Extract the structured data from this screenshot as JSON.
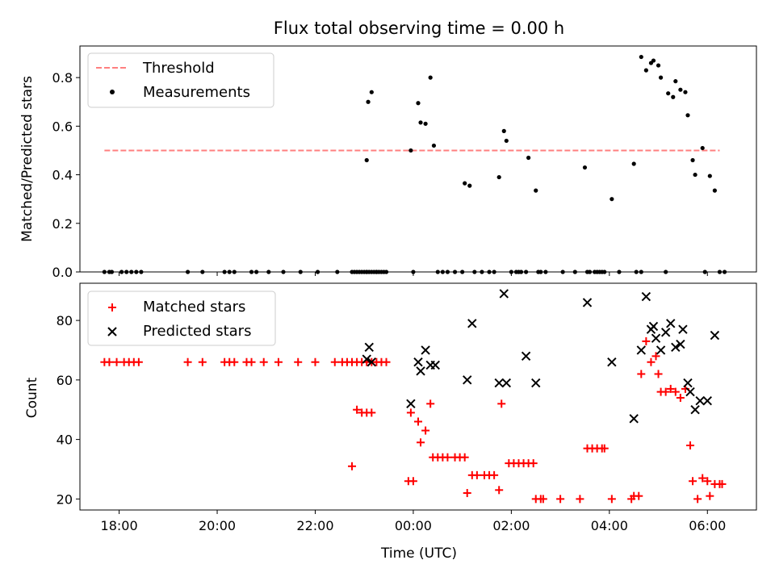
{
  "chart_data": [
    {
      "type": "scatter",
      "title": "Flux total observing time = 0.00 h",
      "xlabel": "",
      "ylabel": "Matched/Predicted stars",
      "xlim": [
        -6.8,
        7.0
      ],
      "ylim": [
        0.0,
        0.93
      ],
      "yticks": [
        0.0,
        0.2,
        0.4,
        0.6,
        0.8
      ],
      "ytick_labels": [
        "0.0",
        "0.2",
        "0.4",
        "0.6",
        "0.8"
      ],
      "xticks": [
        -6,
        -4,
        -2,
        0,
        2,
        4,
        6
      ],
      "grid": false,
      "legend": "top-left",
      "threshold": {
        "name": "Threshold",
        "y": 0.5,
        "x": [
          -6.3,
          6.25
        ],
        "color": "#ff7f7f",
        "style": "dashed"
      },
      "series": [
        {
          "name": "Measurements",
          "color": "#000000",
          "marker": "dot",
          "points": [
            [
              -6.3,
              0
            ],
            [
              -6.2,
              0
            ],
            [
              -6.15,
              0
            ],
            [
              -5.95,
              0
            ],
            [
              -5.85,
              0
            ],
            [
              -5.75,
              0
            ],
            [
              -5.65,
              0
            ],
            [
              -5.55,
              0
            ],
            [
              -4.6,
              0
            ],
            [
              -4.3,
              0
            ],
            [
              -3.85,
              0
            ],
            [
              -3.75,
              0
            ],
            [
              -3.65,
              0
            ],
            [
              -3.3,
              0
            ],
            [
              -3.2,
              0
            ],
            [
              -2.95,
              0
            ],
            [
              -2.65,
              0
            ],
            [
              -2.3,
              0
            ],
            [
              -1.95,
              0
            ],
            [
              -1.55,
              0
            ],
            [
              -1.25,
              0
            ],
            [
              -1.2,
              0
            ],
            [
              -1.15,
              0
            ],
            [
              -1.1,
              0
            ],
            [
              -1.05,
              0
            ],
            [
              -1.0,
              0
            ],
            [
              -0.95,
              0
            ],
            [
              -0.9,
              0
            ],
            [
              -0.85,
              0
            ],
            [
              -0.8,
              0
            ],
            [
              -0.75,
              0
            ],
            [
              -0.7,
              0
            ],
            [
              -0.65,
              0
            ],
            [
              -0.95,
              0.46
            ],
            [
              -0.92,
              0.7
            ],
            [
              -0.85,
              0.74
            ],
            [
              -0.95,
              0
            ],
            [
              -0.75,
              0
            ],
            [
              -0.6,
              0
            ],
            [
              -0.55,
              0
            ],
            [
              -0.05,
              0.5
            ],
            [
              0.0,
              0
            ],
            [
              0.1,
              0.695
            ],
            [
              0.15,
              0.615
            ],
            [
              0.25,
              0.61
            ],
            [
              0.35,
              0.8
            ],
            [
              0.42,
              0.52
            ],
            [
              0.5,
              0
            ],
            [
              0.6,
              0
            ],
            [
              0.7,
              0
            ],
            [
              0.85,
              0
            ],
            [
              1.0,
              0
            ],
            [
              1.05,
              0.365
            ],
            [
              1.15,
              0.355
            ],
            [
              1.25,
              0
            ],
            [
              1.4,
              0
            ],
            [
              1.55,
              0
            ],
            [
              1.65,
              0
            ],
            [
              1.75,
              0.39
            ],
            [
              1.85,
              0.58
            ],
            [
              1.9,
              0.54
            ],
            [
              2.0,
              0
            ],
            [
              2.1,
              0
            ],
            [
              2.15,
              0
            ],
            [
              2.2,
              0
            ],
            [
              2.3,
              0
            ],
            [
              2.35,
              0.47
            ],
            [
              2.5,
              0.335
            ],
            [
              2.55,
              0
            ],
            [
              2.6,
              0
            ],
            [
              2.7,
              0
            ],
            [
              3.05,
              0
            ],
            [
              3.3,
              0
            ],
            [
              3.5,
              0.43
            ],
            [
              3.55,
              0
            ],
            [
              3.6,
              0
            ],
            [
              3.7,
              0
            ],
            [
              3.75,
              0
            ],
            [
              3.8,
              0
            ],
            [
              3.85,
              0
            ],
            [
              3.9,
              0
            ],
            [
              4.05,
              0.3
            ],
            [
              4.2,
              0
            ],
            [
              4.5,
              0.445
            ],
            [
              4.55,
              0
            ],
            [
              4.65,
              0
            ],
            [
              4.65,
              0.885
            ],
            [
              4.75,
              0.83
            ],
            [
              4.85,
              0.86
            ],
            [
              4.9,
              0.87
            ],
            [
              5.0,
              0.85
            ],
            [
              5.05,
              0.8
            ],
            [
              5.15,
              0
            ],
            [
              5.2,
              0.735
            ],
            [
              5.3,
              0.72
            ],
            [
              5.35,
              0.785
            ],
            [
              5.45,
              0.75
            ],
            [
              5.55,
              0.74
            ],
            [
              5.6,
              0.645
            ],
            [
              5.7,
              0.46
            ],
            [
              5.75,
              0.4
            ],
            [
              5.9,
              0.51
            ],
            [
              5.95,
              0
            ],
            [
              6.05,
              0.395
            ],
            [
              6.15,
              0.335
            ],
            [
              6.25,
              0
            ],
            [
              6.35,
              0
            ]
          ]
        }
      ]
    },
    {
      "type": "scatter",
      "title": "",
      "xlabel": "Time (UTC)",
      "ylabel": "Count",
      "xlim": [
        -6.8,
        7.0
      ],
      "ylim": [
        16.3,
        92.5
      ],
      "yticks": [
        20,
        40,
        60,
        80
      ],
      "ytick_labels": [
        "20",
        "40",
        "60",
        "80"
      ],
      "xticks": [
        -6,
        -4,
        -2,
        0,
        2,
        4,
        6
      ],
      "xtick_labels": [
        "18:00",
        "20:00",
        "22:00",
        "00:00",
        "02:00",
        "04:00",
        "06:00"
      ],
      "grid": false,
      "legend": "top-left",
      "series": [
        {
          "name": "Matched stars",
          "color": "#ff0000",
          "marker": "plus",
          "points": [
            [
              -6.3,
              66
            ],
            [
              -6.2,
              66
            ],
            [
              -6.05,
              66
            ],
            [
              -5.9,
              66
            ],
            [
              -5.8,
              66
            ],
            [
              -5.7,
              66
            ],
            [
              -5.6,
              66
            ],
            [
              -4.6,
              66
            ],
            [
              -4.3,
              66
            ],
            [
              -3.85,
              66
            ],
            [
              -3.75,
              66
            ],
            [
              -3.65,
              66
            ],
            [
              -3.4,
              66
            ],
            [
              -3.3,
              66
            ],
            [
              -3.05,
              66
            ],
            [
              -2.75,
              66
            ],
            [
              -2.35,
              66
            ],
            [
              -2.0,
              66
            ],
            [
              -1.6,
              66
            ],
            [
              -1.45,
              66
            ],
            [
              -1.35,
              66
            ],
            [
              -1.25,
              66
            ],
            [
              -1.15,
              66
            ],
            [
              -1.05,
              66
            ],
            [
              -0.95,
              66
            ],
            [
              -0.85,
              66
            ],
            [
              -0.75,
              66
            ],
            [
              -0.65,
              66
            ],
            [
              -0.55,
              66
            ],
            [
              -1.25,
              31
            ],
            [
              -1.15,
              50
            ],
            [
              -1.05,
              49
            ],
            [
              -0.95,
              49
            ],
            [
              -0.85,
              49
            ],
            [
              -0.05,
              49
            ],
            [
              -0.1,
              26
            ],
            [
              0.0,
              26
            ],
            [
              0.1,
              46
            ],
            [
              0.15,
              39
            ],
            [
              0.25,
              43
            ],
            [
              0.35,
              52
            ],
            [
              0.4,
              34
            ],
            [
              0.5,
              34
            ],
            [
              0.6,
              34
            ],
            [
              0.7,
              34
            ],
            [
              0.85,
              34
            ],
            [
              0.95,
              34
            ],
            [
              1.05,
              34
            ],
            [
              1.1,
              22
            ],
            [
              1.2,
              28
            ],
            [
              1.3,
              28
            ],
            [
              1.45,
              28
            ],
            [
              1.55,
              28
            ],
            [
              1.65,
              28
            ],
            [
              1.75,
              23
            ],
            [
              1.8,
              52
            ],
            [
              1.95,
              32
            ],
            [
              2.05,
              32
            ],
            [
              2.15,
              32
            ],
            [
              2.25,
              32
            ],
            [
              2.35,
              32
            ],
            [
              2.45,
              32
            ],
            [
              2.5,
              20
            ],
            [
              2.6,
              20
            ],
            [
              2.65,
              20
            ],
            [
              3.0,
              20
            ],
            [
              3.4,
              20
            ],
            [
              3.55,
              37
            ],
            [
              3.65,
              37
            ],
            [
              3.75,
              37
            ],
            [
              3.85,
              37
            ],
            [
              3.9,
              37
            ],
            [
              4.05,
              20
            ],
            [
              4.45,
              20
            ],
            [
              4.5,
              21
            ],
            [
              4.6,
              21
            ],
            [
              4.65,
              62
            ],
            [
              4.75,
              73
            ],
            [
              4.85,
              66
            ],
            [
              4.95,
              68
            ],
            [
              5.0,
              62
            ],
            [
              5.05,
              56
            ],
            [
              5.15,
              56
            ],
            [
              5.25,
              57
            ],
            [
              5.35,
              56
            ],
            [
              5.45,
              54
            ],
            [
              5.55,
              57
            ],
            [
              5.65,
              38
            ],
            [
              5.7,
              26
            ],
            [
              5.8,
              20
            ],
            [
              5.9,
              27
            ],
            [
              6.0,
              26
            ],
            [
              6.05,
              21
            ],
            [
              6.15,
              25
            ],
            [
              6.25,
              25
            ],
            [
              6.3,
              25
            ]
          ]
        },
        {
          "name": "Predicted stars",
          "color": "#000000",
          "marker": "x",
          "points": [
            [
              -0.95,
              67
            ],
            [
              -0.9,
              71
            ],
            [
              -0.85,
              66
            ],
            [
              -0.05,
              52
            ],
            [
              0.1,
              66
            ],
            [
              0.15,
              63
            ],
            [
              0.25,
              70
            ],
            [
              0.35,
              65
            ],
            [
              0.45,
              65
            ],
            [
              1.1,
              60
            ],
            [
              1.2,
              79
            ],
            [
              1.75,
              59
            ],
            [
              1.85,
              89
            ],
            [
              1.9,
              59
            ],
            [
              2.3,
              68
            ],
            [
              2.5,
              59
            ],
            [
              3.55,
              86
            ],
            [
              4.05,
              66
            ],
            [
              4.5,
              47
            ],
            [
              4.65,
              70
            ],
            [
              4.75,
              88
            ],
            [
              4.85,
              77
            ],
            [
              4.9,
              78
            ],
            [
              4.95,
              74
            ],
            [
              5.05,
              70
            ],
            [
              5.15,
              76
            ],
            [
              5.25,
              79
            ],
            [
              5.35,
              71
            ],
            [
              5.45,
              72
            ],
            [
              5.5,
              77
            ],
            [
              5.6,
              59
            ],
            [
              5.65,
              56
            ],
            [
              5.75,
              50
            ],
            [
              5.85,
              53
            ],
            [
              6.0,
              53
            ],
            [
              6.15,
              75
            ]
          ]
        }
      ]
    }
  ]
}
